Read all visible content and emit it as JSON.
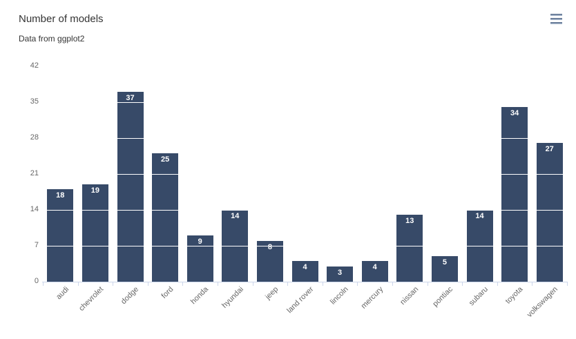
{
  "header": {
    "title": "Number of models",
    "subtitle": "Data from ggplot2"
  },
  "toolbar": {
    "context_menu_icon": "hamburger-icon"
  },
  "chart_data": {
    "type": "bar",
    "title": "Number of models",
    "subtitle": "Data from ggplot2",
    "categories": [
      "audi",
      "chevrolet",
      "dodge",
      "ford",
      "honda",
      "hyundai",
      "jeep",
      "land rover",
      "lincoln",
      "mercury",
      "nissan",
      "pontiac",
      "subaru",
      "toyota",
      "volkswagen"
    ],
    "values": [
      18,
      19,
      37,
      25,
      9,
      14,
      8,
      4,
      3,
      4,
      13,
      5,
      14,
      34,
      27
    ],
    "xlabel": "",
    "ylabel": "",
    "ylim": [
      0,
      42
    ],
    "yticks": [
      0,
      7,
      14,
      21,
      28,
      35,
      42
    ],
    "grid": "horizontal white lines visible over bars",
    "legend": "none",
    "data_labels": "white bold values inside top of bars",
    "colors": {
      "bar": "#374a68",
      "data_label": "#ffffff",
      "axis_label": "#666666",
      "title": "#333333",
      "subtitle": "#333333",
      "axis_line": "#ccd6eb",
      "grid_line": "#ffffff",
      "background": "#ffffff"
    }
  }
}
